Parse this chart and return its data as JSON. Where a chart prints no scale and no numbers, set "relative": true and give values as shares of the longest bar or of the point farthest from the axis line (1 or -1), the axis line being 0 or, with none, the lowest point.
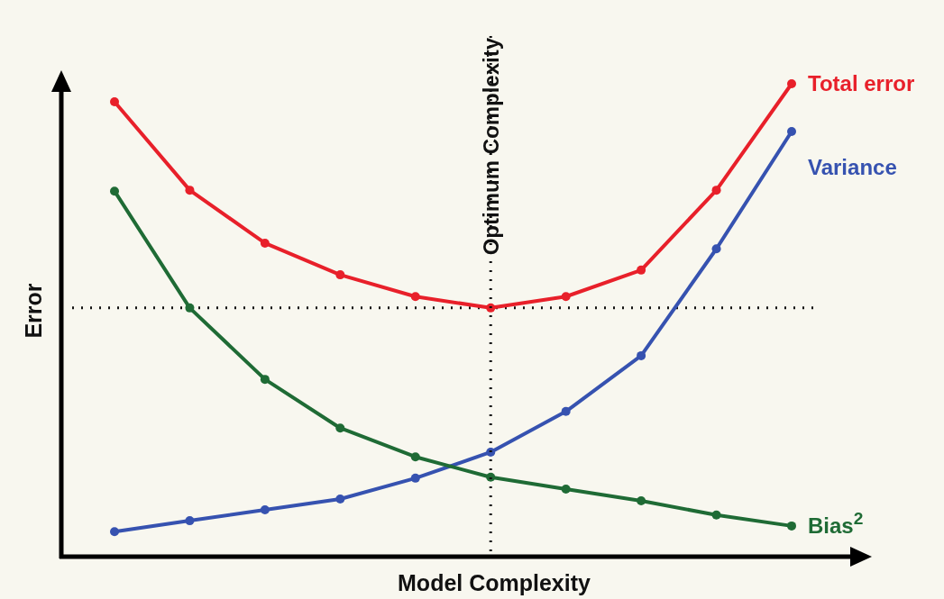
{
  "chart_data": {
    "type": "line",
    "relative": true,
    "xlabel": "Model Complexity",
    "ylabel": "Error",
    "marker": "circle",
    "line_style": "solid",
    "categories": [
      null,
      null,
      null,
      null,
      null,
      null,
      null,
      null,
      null,
      null
    ],
    "series": [
      {
        "name": "Total error",
        "color": "#e8202a",
        "values": [
          0.962,
          0.775,
          0.663,
          0.596,
          0.55,
          0.526,
          0.55,
          0.606,
          0.775,
          1
        ]
      },
      {
        "name": "Variance",
        "color": "#3652b0",
        "values": [
          0.053,
          0.076,
          0.099,
          0.122,
          0.166,
          0.221,
          0.307,
          0.425,
          0.651,
          0.899
        ]
      },
      {
        "name": "Bias$^{2}$",
        "color": "#1f6b35",
        "values": [
          0.773,
          0.526,
          0.375,
          0.272,
          0.211,
          0.168,
          0.143,
          0.118,
          0.088,
          0.065
        ]
      }
    ],
    "ref_lines": [
      {
        "axis": "y",
        "value": 0.526,
        "line_style": "dotted",
        "color": "#111111"
      }
    ],
    "annotations": [
      "Optimum Complexity"
    ]
  }
}
